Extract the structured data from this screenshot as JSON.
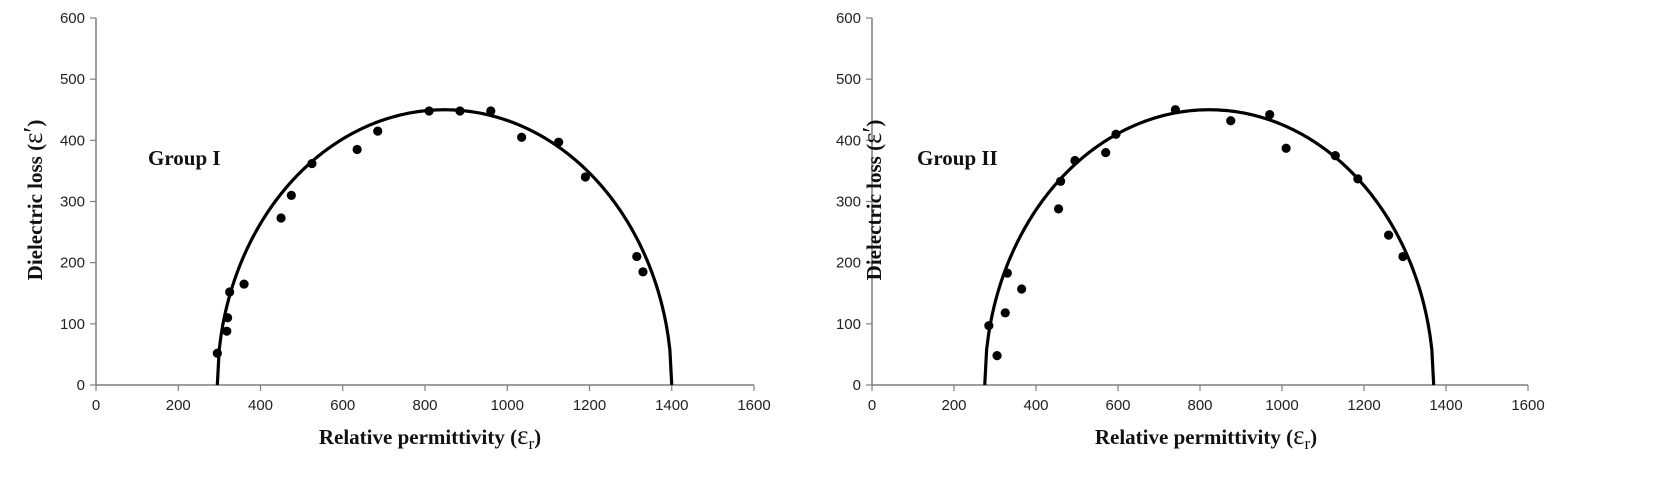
{
  "chart_data": [
    {
      "type": "scatter",
      "annotation": "Group I",
      "xlabel": "Relative permittivity (",
      "xlabel_symbol": "ɛ",
      "xlabel_sub": "r",
      "xlabel_close": ")",
      "ylabel": "Dielectric loss (",
      "ylabel_symbol": "ɛ′",
      "ylabel_close": ")",
      "xlim": [
        0,
        1600
      ],
      "ylim": [
        0,
        600
      ],
      "xticks": [
        0,
        200,
        400,
        600,
        800,
        1000,
        1200,
        1400,
        1600
      ],
      "yticks": [
        0,
        100,
        200,
        300,
        400,
        500,
        600
      ],
      "grid": false,
      "fit_curve": {
        "shape": "semi-ellipse",
        "x_start": 295,
        "x_end": 1400,
        "peak_y": 450
      },
      "points": [
        {
          "x": 295,
          "y": 52
        },
        {
          "x": 318,
          "y": 88
        },
        {
          "x": 320,
          "y": 110
        },
        {
          "x": 325,
          "y": 152
        },
        {
          "x": 360,
          "y": 165
        },
        {
          "x": 450,
          "y": 273
        },
        {
          "x": 475,
          "y": 310
        },
        {
          "x": 525,
          "y": 362
        },
        {
          "x": 635,
          "y": 385
        },
        {
          "x": 685,
          "y": 415
        },
        {
          "x": 810,
          "y": 448
        },
        {
          "x": 885,
          "y": 448
        },
        {
          "x": 960,
          "y": 448
        },
        {
          "x": 1035,
          "y": 405
        },
        {
          "x": 1125,
          "y": 397
        },
        {
          "x": 1190,
          "y": 340
        },
        {
          "x": 1315,
          "y": 210
        },
        {
          "x": 1330,
          "y": 185
        }
      ]
    },
    {
      "type": "scatter",
      "annotation": "Group II",
      "xlabel": "Relative permittivity (",
      "xlabel_symbol": "ɛ",
      "xlabel_sub": "r",
      "xlabel_close": ")",
      "ylabel": "Dielectric loss (",
      "ylabel_symbol": "ɛ′",
      "ylabel_close": ")",
      "xlim": [
        0,
        1600
      ],
      "ylim": [
        0,
        600
      ],
      "xticks": [
        0,
        200,
        400,
        600,
        800,
        1000,
        1200,
        1400,
        1600
      ],
      "yticks": [
        0,
        100,
        200,
        300,
        400,
        500,
        600
      ],
      "grid": false,
      "fit_curve": {
        "shape": "semi-ellipse",
        "x_start": 275,
        "x_end": 1370,
        "peak_y": 450
      },
      "points": [
        {
          "x": 285,
          "y": 97
        },
        {
          "x": 305,
          "y": 48
        },
        {
          "x": 325,
          "y": 118
        },
        {
          "x": 330,
          "y": 183
        },
        {
          "x": 365,
          "y": 157
        },
        {
          "x": 455,
          "y": 288
        },
        {
          "x": 460,
          "y": 333
        },
        {
          "x": 495,
          "y": 367
        },
        {
          "x": 570,
          "y": 380
        },
        {
          "x": 595,
          "y": 410
        },
        {
          "x": 740,
          "y": 450
        },
        {
          "x": 875,
          "y": 432
        },
        {
          "x": 970,
          "y": 442
        },
        {
          "x": 1010,
          "y": 387
        },
        {
          "x": 1130,
          "y": 375
        },
        {
          "x": 1185,
          "y": 337
        },
        {
          "x": 1260,
          "y": 245
        },
        {
          "x": 1295,
          "y": 210
        }
      ]
    }
  ]
}
